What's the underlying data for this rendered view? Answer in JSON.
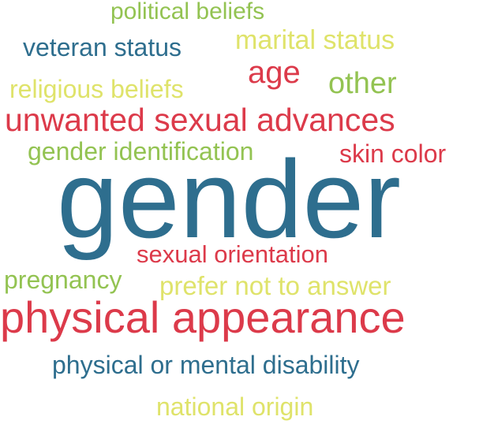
{
  "words": {
    "political_beliefs": "political beliefs",
    "veteran_status": "veteran status",
    "marital_status": "marital status",
    "age": "age",
    "other": "other",
    "religious_beliefs": "religious beliefs",
    "unwanted_sexual_advances": "unwanted sexual advances",
    "gender_identification": "gender identification",
    "skin_color": "skin color",
    "gender": "gender",
    "sexual_orientation": "sexual orientation",
    "pregnancy": "pregnancy",
    "prefer_not_to_answer": "prefer not to answer",
    "physical_appearance": "physical appearance",
    "physical_or_mental_disability": "physical or mental disability",
    "national_origin": "national origin"
  },
  "colors": {
    "teal": "#2e6e8e",
    "red": "#dc3a4a",
    "lime": "#93c352",
    "yellow": "#dfe36a"
  }
}
